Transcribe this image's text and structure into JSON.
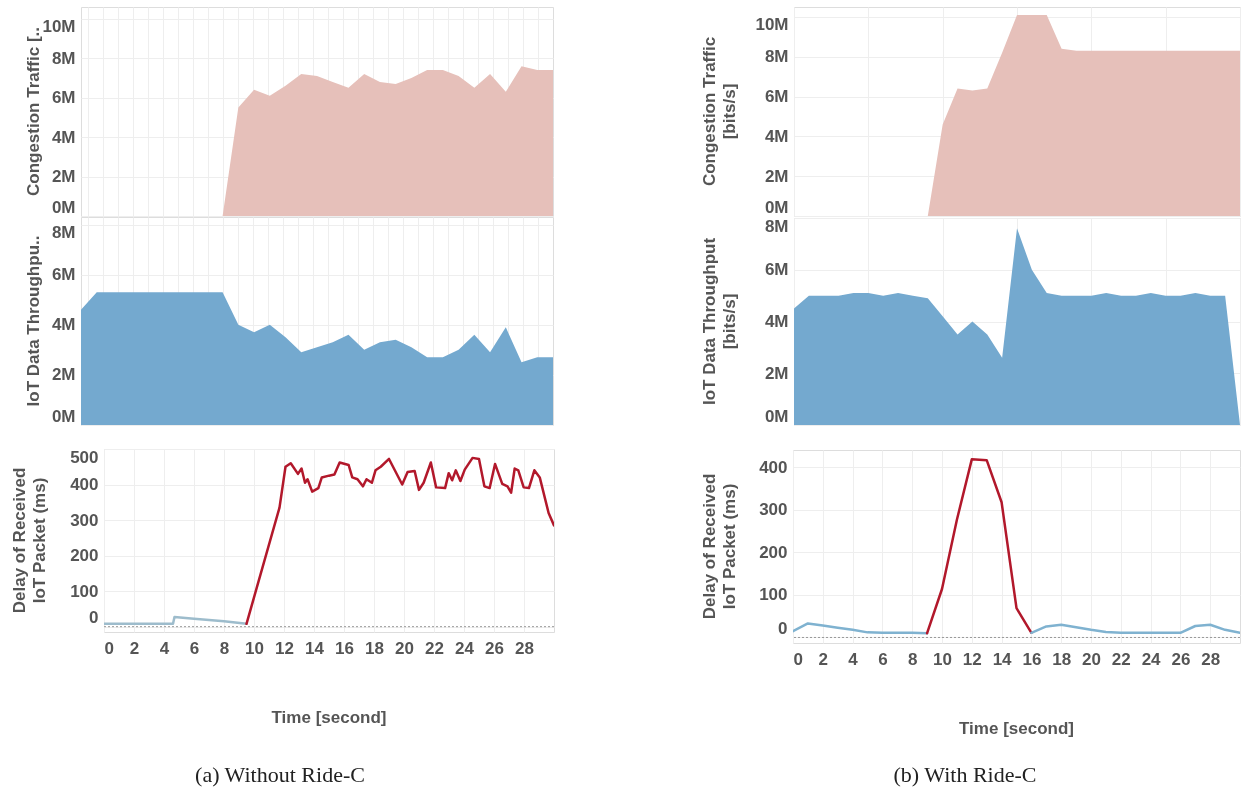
{
  "chart_data": [
    {
      "type": "area",
      "ylabel": "Congestion Traffic [..",
      "xlim": [
        -1.5,
        30
      ],
      "ylim": [
        0,
        10.6
      ],
      "xticks": [
        -1,
        0,
        1,
        2,
        3,
        4,
        5,
        6,
        7,
        8,
        9,
        10,
        11,
        12,
        13,
        14,
        15,
        16,
        17,
        18,
        19,
        20,
        21,
        22,
        23,
        24,
        25,
        26,
        27,
        28,
        29
      ],
      "yticks": [
        {
          "value": 0,
          "label": "0M"
        },
        {
          "value": 2,
          "label": "2M"
        },
        {
          "value": 4,
          "label": "4M"
        },
        {
          "value": 6,
          "label": "6M"
        },
        {
          "value": 8,
          "label": "8M"
        },
        {
          "value": 10,
          "label": "10M"
        }
      ],
      "tick_labels": "y",
      "grid": true,
      "color": "#e6c0ba",
      "x": [
        -1.5,
        -0.45,
        0.6,
        1.65,
        2.7,
        3.75,
        4.8,
        5.85,
        6.9,
        7.95,
        9,
        10.05,
        11.1,
        12.15,
        13.2,
        14.25,
        15.3,
        16.35,
        17.4,
        18.45,
        19.5,
        20.55,
        21.6,
        22.65,
        23.7,
        24.75,
        25.8,
        26.85,
        27.9,
        28.95,
        30
      ],
      "values": [
        0,
        0,
        0,
        0,
        0,
        0,
        0,
        0,
        0,
        0,
        5.5,
        6.4,
        6.1,
        6.6,
        7.2,
        7.1,
        6.8,
        6.5,
        7.2,
        6.8,
        6.7,
        7.0,
        7.4,
        7.4,
        7.1,
        6.5,
        7.2,
        6.3,
        7.6,
        7.4,
        7.4
      ]
    },
    {
      "type": "area",
      "ylabel": "Congestion Traffic\n[bits/s]",
      "xlim": [
        0,
        30
      ],
      "ylim": [
        0,
        10.5
      ],
      "xticks": [
        0,
        5,
        10,
        15,
        20,
        25,
        30
      ],
      "yticks": [
        {
          "value": 0,
          "label": "0M"
        },
        {
          "value": 2,
          "label": "2M"
        },
        {
          "value": 4,
          "label": "4M"
        },
        {
          "value": 6,
          "label": "6M"
        },
        {
          "value": 8,
          "label": "8M"
        },
        {
          "value": 10,
          "label": "10M"
        }
      ],
      "tick_labels": "y",
      "grid": true,
      "color": "#e6c0ba",
      "x": [
        0,
        1,
        2,
        3,
        4,
        5,
        6,
        7,
        8,
        9,
        10,
        11,
        12,
        13,
        14,
        15,
        16,
        17,
        18,
        19,
        20,
        21,
        22,
        23,
        24,
        25,
        26,
        27,
        28,
        29,
        30
      ],
      "values": [
        0,
        0,
        0,
        0,
        0,
        0,
        0,
        0,
        0,
        0,
        4.6,
        6.4,
        6.3,
        6.4,
        8.2,
        10.1,
        10.1,
        10.1,
        8.4,
        8.3,
        8.3,
        8.3,
        8.3,
        8.3,
        8.3,
        8.3,
        8.3,
        8.3,
        8.3,
        8.3,
        8.3
      ]
    },
    {
      "type": "area",
      "ylabel": "IoT Data Throughpu..",
      "xlim": [
        -1.5,
        30
      ],
      "ylim": [
        0,
        8.3
      ],
      "xticks": [
        -1,
        0,
        1,
        2,
        3,
        4,
        5,
        6,
        7,
        8,
        9,
        10,
        11,
        12,
        13,
        14,
        15,
        16,
        17,
        18,
        19,
        20,
        21,
        22,
        23,
        24,
        25,
        26,
        27,
        28,
        29
      ],
      "yticks": [
        {
          "value": 0,
          "label": "0M"
        },
        {
          "value": 2,
          "label": "2M"
        },
        {
          "value": 4,
          "label": "4M"
        },
        {
          "value": 6,
          "label": "6M"
        },
        {
          "value": 8,
          "label": "8M"
        }
      ],
      "tick_labels": "y",
      "grid": true,
      "color": "#74a9cf",
      "x": [
        -1.5,
        -0.45,
        0.6,
        1.65,
        2.7,
        3.75,
        4.8,
        5.85,
        6.9,
        7.95,
        9,
        10.05,
        11.1,
        12.15,
        13.2,
        14.25,
        15.3,
        16.35,
        17.4,
        18.45,
        19.5,
        20.55,
        21.6,
        22.65,
        23.7,
        24.75,
        25.8,
        26.85,
        27.9,
        28.95,
        30
      ],
      "values": [
        4.6,
        5.3,
        5.3,
        5.3,
        5.3,
        5.3,
        5.3,
        5.3,
        5.3,
        5.3,
        4.0,
        3.7,
        4.0,
        3.5,
        2.9,
        3.1,
        3.3,
        3.6,
        3.0,
        3.3,
        3.4,
        3.1,
        2.7,
        2.7,
        3.0,
        3.6,
        2.9,
        3.9,
        2.5,
        2.7,
        2.7
      ]
    },
    {
      "type": "area",
      "ylabel": "IoT Data Throughput\n[bits/s]",
      "xlim": [
        0,
        30
      ],
      "ylim": [
        0,
        8
      ],
      "xticks": [
        0,
        5,
        10,
        15,
        20,
        25,
        30
      ],
      "yticks": [
        {
          "value": 0,
          "label": "0M"
        },
        {
          "value": 2,
          "label": "2M"
        },
        {
          "value": 4,
          "label": "4M"
        },
        {
          "value": 6,
          "label": "6M"
        },
        {
          "value": 8,
          "label": "8M"
        }
      ],
      "tick_labels": "y",
      "grid": true,
      "color": "#74a9cf",
      "x": [
        0,
        1,
        2,
        3,
        4,
        5,
        6,
        7,
        8,
        9,
        10,
        11,
        12,
        13,
        14,
        15,
        16,
        17,
        18,
        19,
        20,
        21,
        22,
        23,
        24,
        25,
        26,
        27,
        28,
        29,
        30
      ],
      "values": [
        4.5,
        5.0,
        5.0,
        5.0,
        5.1,
        5.1,
        5.0,
        5.1,
        5.0,
        4.9,
        4.2,
        3.5,
        4.0,
        3.5,
        2.6,
        7.6,
        6.0,
        5.1,
        5.0,
        5.0,
        5.0,
        5.1,
        5.0,
        5.0,
        5.1,
        5.0,
        5.0,
        5.1,
        5.0,
        5.0,
        0
      ]
    },
    {
      "type": "line",
      "ylabel": "Delay of Received\nIoT Packet (ms)",
      "xlabel": "Time [second]",
      "xlim": [
        0,
        30
      ],
      "ylim": [
        -15,
        500
      ],
      "xticks": [
        0,
        2,
        4,
        6,
        8,
        10,
        12,
        14,
        16,
        18,
        20,
        22,
        24,
        26,
        28
      ],
      "yticks": [
        0,
        100,
        200,
        300,
        400,
        500
      ],
      "grid": true,
      "line_style": "solid",
      "ref_lines": [
        {
          "axis": "y",
          "value": 0,
          "color": "#999999",
          "line_style": "dotted"
        }
      ],
      "annotations": [
        "(a) Without Ride-C"
      ],
      "series": [
        {
          "color": "#9dbccc",
          "x": [
            0,
            4.6,
            4.7,
            6,
            8,
            9.5
          ],
          "values": [
            8,
            8,
            27,
            22,
            15,
            8
          ]
        },
        {
          "color": "#b2182b",
          "x": [
            9.5,
            11.7,
            12.1,
            12.45,
            12.93,
            13.17,
            13.4,
            13.57,
            13.88,
            14.29,
            14.52,
            15.0,
            15.36,
            15.71,
            16.31,
            16.55,
            16.9,
            17.26,
            17.5,
            17.86,
            18.1,
            18.45,
            19.0,
            19.88,
            20.24,
            20.71,
            21.0,
            21.31,
            21.79,
            22.14,
            22.74,
            22.98,
            23.21,
            23.45,
            23.76,
            24.05,
            24.57,
            25.0,
            25.36,
            25.71,
            26.07,
            26.55,
            26.9,
            27.14,
            27.38,
            27.62,
            27.98,
            28.33,
            28.69,
            29.05,
            29.64,
            30.0
          ],
          "values": [
            8,
            335,
            450,
            460,
            430,
            445,
            405,
            415,
            380,
            390,
            420,
            425,
            428,
            462,
            455,
            420,
            415,
            395,
            415,
            405,
            440,
            450,
            472,
            400,
            435,
            438,
            385,
            405,
            462,
            392,
            390,
            432,
            412,
            440,
            410,
            442,
            475,
            472,
            395,
            390,
            458,
            402,
            395,
            377,
            445,
            440,
            392,
            390,
            440,
            420,
            320,
            285
          ]
        }
      ]
    },
    {
      "type": "line",
      "ylabel": "Delay of Received\nIoT Packet (ms)",
      "xlabel": "Time [second]",
      "xlim": [
        0,
        30
      ],
      "ylim": [
        -13,
        441
      ],
      "xticks": [
        0,
        2,
        4,
        6,
        8,
        10,
        12,
        14,
        16,
        18,
        20,
        22,
        24,
        26,
        28
      ],
      "yticks": [
        0,
        100,
        200,
        300,
        400
      ],
      "grid": true,
      "line_style": "solid",
      "ref_lines": [
        {
          "axis": "y",
          "value": 0,
          "color": "#999999",
          "line_style": "dotted"
        }
      ],
      "annotations": [
        "(b) With Ride-C"
      ],
      "series": [
        {
          "color": "#7fb2d0",
          "x": [
            0,
            1,
            2,
            3,
            4,
            5,
            6,
            7,
            8,
            9
          ],
          "values": [
            15,
            33,
            28,
            23,
            18,
            12,
            11,
            11,
            11,
            10
          ]
        },
        {
          "color": "#b2182b",
          "x": [
            9,
            10,
            11,
            12,
            13,
            14,
            15,
            16
          ],
          "values": [
            10,
            114,
            277,
            419,
            417,
            318,
            69,
            11
          ]
        },
        {
          "color": "#7fb2d0",
          "x": [
            16,
            17,
            18,
            19,
            20,
            21,
            22,
            23,
            24,
            25,
            26,
            27,
            28,
            29,
            30
          ],
          "values": [
            11,
            26,
            30,
            24,
            18,
            13,
            11,
            11,
            11,
            11,
            11,
            27,
            30,
            18,
            11
          ]
        }
      ]
    }
  ]
}
